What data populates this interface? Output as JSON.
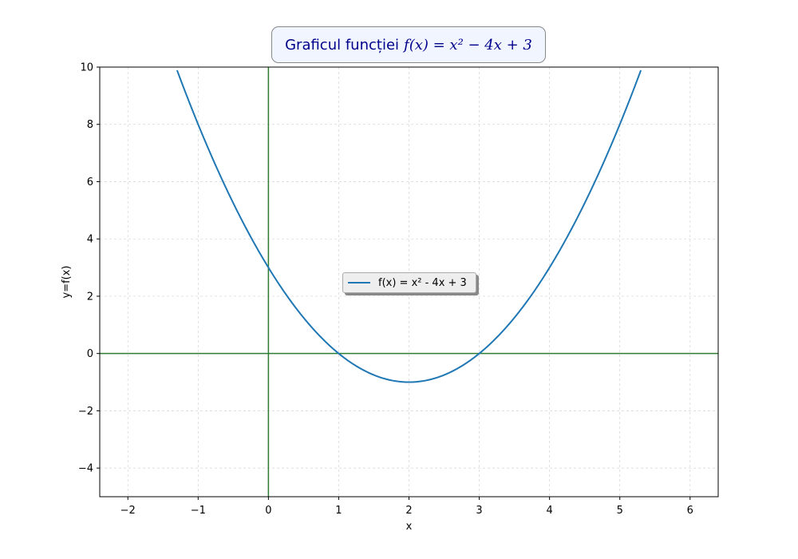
{
  "title": {
    "text": "Graficul funcției",
    "math": "f(x) = x² − 4x + 3"
  },
  "colors": {
    "curve": "#1f77b4",
    "axes_lines": "#2e7d32",
    "grid": "#d3d3d3",
    "title_text": "#00008b",
    "title_bg": "#f0f5ff"
  },
  "chart_data": {
    "type": "line",
    "function": "x^2 - 4x + 3",
    "xlabel": "x",
    "ylabel": "y=f(x)",
    "xlim": [
      -2.4,
      6.4
    ],
    "ylim": [
      -5,
      10
    ],
    "xticks": [
      -2,
      -1,
      0,
      1,
      2,
      3,
      4,
      5,
      6
    ],
    "yticks": [
      -4,
      -2,
      0,
      2,
      4,
      6,
      8,
      10
    ],
    "grid": true,
    "legend_position": "center",
    "series": [
      {
        "name": "f(x) = x² - 4x + 3",
        "x": [
          -1.3,
          -1,
          -0.5,
          0,
          0.5,
          1,
          1.5,
          2,
          2.5,
          3,
          3.5,
          4,
          4.5,
          5,
          5.3
        ],
        "y": [
          10.89,
          8,
          5.25,
          3,
          1.25,
          0,
          -0.75,
          -1,
          -0.75,
          0,
          1.25,
          3,
          5.25,
          8,
          10.89
        ]
      }
    ],
    "reference_lines": {
      "x0": true,
      "y0": true
    }
  }
}
